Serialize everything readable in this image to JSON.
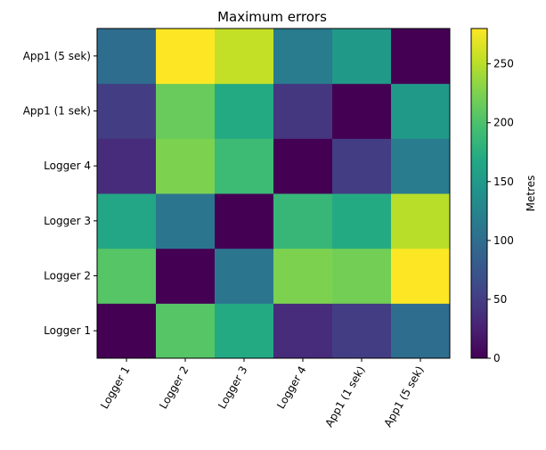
{
  "chart_data": {
    "type": "heatmap",
    "title": "Maximum errors",
    "x_categories": [
      "Logger 1",
      "Logger 2",
      "Logger 3",
      "Logger 4",
      "App1 (1 sek)",
      "App1 (5 sek)"
    ],
    "y_categories": [
      "Logger 1",
      "Logger 2",
      "Logger 3",
      "Logger 4",
      "App1 (1 sek)",
      "App1 (5 sek)"
    ],
    "y_order": "bottom-to-top",
    "values": [
      [
        0,
        205,
        170,
        35,
        50,
        100
      ],
      [
        205,
        0,
        110,
        225,
        220,
        280
      ],
      [
        165,
        110,
        0,
        185,
        170,
        250
      ],
      [
        35,
        225,
        190,
        0,
        50,
        115
      ],
      [
        50,
        215,
        170,
        45,
        0,
        150
      ],
      [
        100,
        280,
        255,
        115,
        150,
        0
      ]
    ],
    "colormap": "viridis",
    "vmin": 0,
    "vmax": 280,
    "colorbar": {
      "label": "Metres",
      "ticks": [
        0,
        50,
        100,
        150,
        200,
        250
      ]
    }
  }
}
